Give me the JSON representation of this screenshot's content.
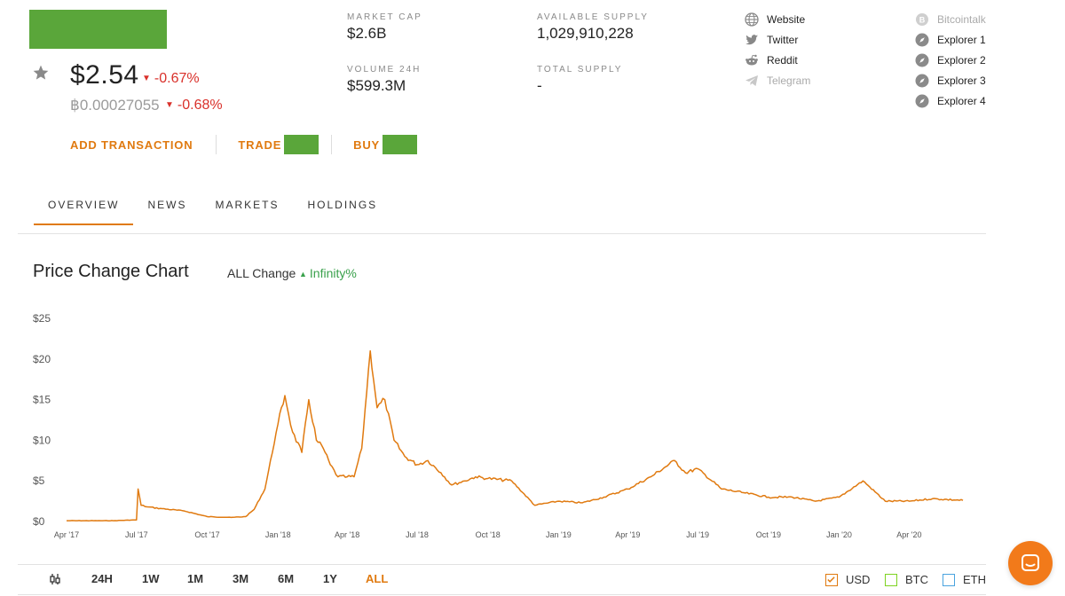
{
  "coin": {
    "price": "$2.54",
    "price_change": "-0.67%",
    "btc_price": "฿0.00027055",
    "btc_change": "-0.68%"
  },
  "actions": {
    "add_transaction": "ADD TRANSACTION",
    "trade": "TRADE",
    "buy": "BUY"
  },
  "stats": {
    "market_cap_label": "MARKET CAP",
    "market_cap": "$2.6B",
    "volume_label": "VOLUME 24H",
    "volume": "$599.3M",
    "available_supply_label": "AVAILABLE SUPPLY",
    "available_supply": "1,029,910,228",
    "total_supply_label": "TOTAL SUPPLY",
    "total_supply": "-"
  },
  "links": {
    "website": "Website",
    "twitter": "Twitter",
    "reddit": "Reddit",
    "telegram": "Telegram",
    "bitcointalk": "Bitcointalk",
    "explorer1": "Explorer 1",
    "explorer2": "Explorer 2",
    "explorer3": "Explorer 3",
    "explorer4": "Explorer 4"
  },
  "tabs": [
    "OVERVIEW",
    "NEWS",
    "MARKETS",
    "HOLDINGS"
  ],
  "chart_header": {
    "title": "Price Change Chart",
    "change_label": "ALL Change",
    "change_value": "Infinity%"
  },
  "ranges": [
    "24H",
    "1W",
    "1M",
    "3M",
    "6M",
    "1Y",
    "ALL"
  ],
  "legend": {
    "usd": "USD",
    "btc": "BTC",
    "eth": "ETH"
  },
  "colors": {
    "accent": "#e07a10",
    "negative": "#d9312b",
    "positive": "#3aa14c",
    "usd": "#e07a10",
    "btc": "#7ed321",
    "eth": "#4aa3df"
  },
  "chart_data": {
    "type": "line",
    "title": "",
    "xlabel": "",
    "ylabel": "",
    "ylim": [
      0,
      25
    ],
    "y_ticks": [
      "$0",
      "$5",
      "$10",
      "$15",
      "$20",
      "$25"
    ],
    "x_ticks": [
      "Apr '17",
      "Jul '17",
      "Oct '17",
      "Jan '18",
      "Apr '18",
      "Jul '18",
      "Oct '18",
      "Jan '19",
      "Apr '19",
      "Jul '19",
      "Oct '19",
      "Jan '20",
      "Apr '20"
    ],
    "series": [
      {
        "name": "USD",
        "points": [
          [
            "2017-04-01",
            0.1
          ],
          [
            "2017-06-01",
            0.1
          ],
          [
            "2017-07-01",
            0.2
          ],
          [
            "2017-07-03",
            4.0
          ],
          [
            "2017-07-07",
            2.0
          ],
          [
            "2017-07-15",
            1.8
          ],
          [
            "2017-08-01",
            1.6
          ],
          [
            "2017-09-01",
            1.3
          ],
          [
            "2017-10-01",
            0.6
          ],
          [
            "2017-11-01",
            0.5
          ],
          [
            "2017-11-20",
            0.6
          ],
          [
            "2017-12-01",
            1.5
          ],
          [
            "2017-12-15",
            4.0
          ],
          [
            "2018-01-01",
            12.0
          ],
          [
            "2018-01-10",
            15.5
          ],
          [
            "2018-01-20",
            11.0
          ],
          [
            "2018-02-01",
            8.5
          ],
          [
            "2018-02-10",
            15.0
          ],
          [
            "2018-02-20",
            10.0
          ],
          [
            "2018-03-01",
            9.0
          ],
          [
            "2018-03-10",
            7.0
          ],
          [
            "2018-03-20",
            5.5
          ],
          [
            "2018-04-01",
            5.5
          ],
          [
            "2018-04-10",
            5.5
          ],
          [
            "2018-04-20",
            9.0
          ],
          [
            "2018-05-01",
            21.0
          ],
          [
            "2018-05-10",
            14.0
          ],
          [
            "2018-05-20",
            15.0
          ],
          [
            "2018-06-01",
            10.0
          ],
          [
            "2018-06-15",
            8.0
          ],
          [
            "2018-07-01",
            7.0
          ],
          [
            "2018-07-15",
            7.5
          ],
          [
            "2018-08-01",
            6.0
          ],
          [
            "2018-08-15",
            4.5
          ],
          [
            "2018-09-01",
            5.0
          ],
          [
            "2018-09-15",
            5.5
          ],
          [
            "2018-10-01",
            5.3
          ],
          [
            "2018-11-01",
            5.0
          ],
          [
            "2018-12-01",
            2.0
          ],
          [
            "2019-01-01",
            2.5
          ],
          [
            "2019-02-01",
            2.3
          ],
          [
            "2019-03-01",
            3.0
          ],
          [
            "2019-04-01",
            4.0
          ],
          [
            "2019-05-01",
            5.5
          ],
          [
            "2019-06-01",
            7.5
          ],
          [
            "2019-06-15",
            6.0
          ],
          [
            "2019-07-01",
            6.5
          ],
          [
            "2019-08-01",
            4.0
          ],
          [
            "2019-09-01",
            3.5
          ],
          [
            "2019-10-01",
            3.0
          ],
          [
            "2019-11-01",
            3.0
          ],
          [
            "2019-12-01",
            2.5
          ],
          [
            "2020-01-01",
            3.0
          ],
          [
            "2020-02-01",
            5.0
          ],
          [
            "2020-03-01",
            2.5
          ],
          [
            "2020-04-01",
            2.5
          ],
          [
            "2020-05-01",
            2.8
          ],
          [
            "2020-06-10",
            2.6
          ]
        ]
      }
    ]
  }
}
